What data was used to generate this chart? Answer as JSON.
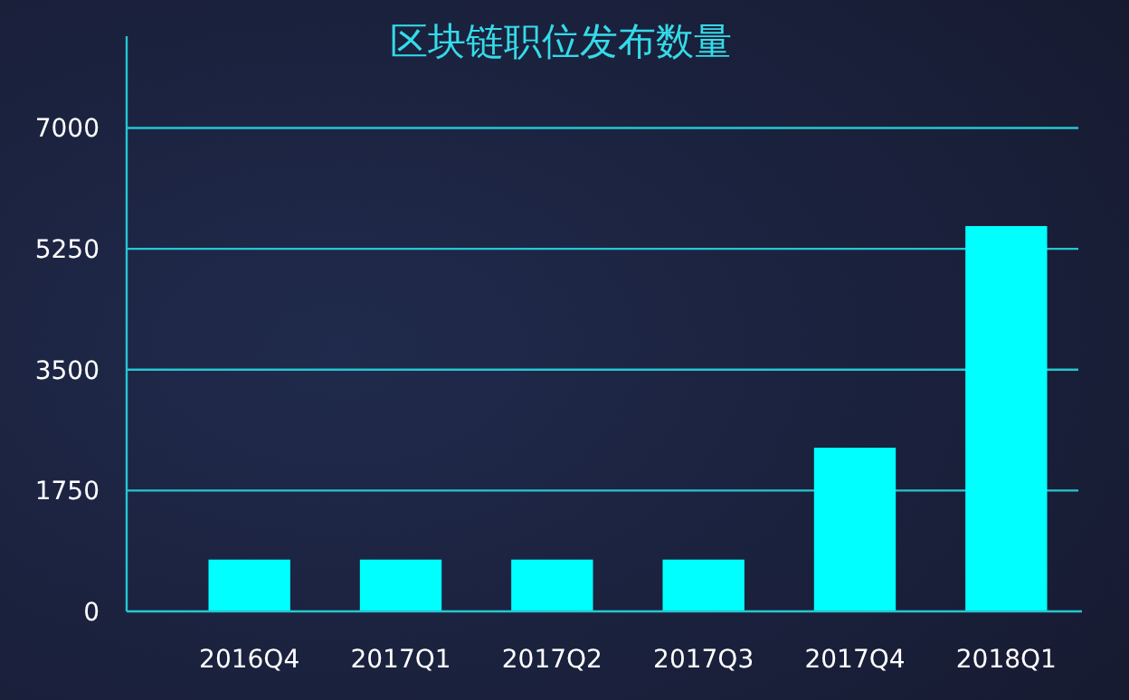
{
  "chart_data": {
    "type": "bar",
    "title": "区块链职位发布数量",
    "categories": [
      "2016Q4",
      "2017Q1",
      "2017Q2",
      "2017Q3",
      "2017Q4",
      "2018Q1"
    ],
    "values": [
      750,
      750,
      750,
      750,
      2370,
      5580
    ],
    "color": "#00ffff",
    "ylim": [
      0,
      8330
    ],
    "yticks": [
      0,
      1750,
      3500,
      5250,
      7000
    ],
    "grid": "y"
  }
}
